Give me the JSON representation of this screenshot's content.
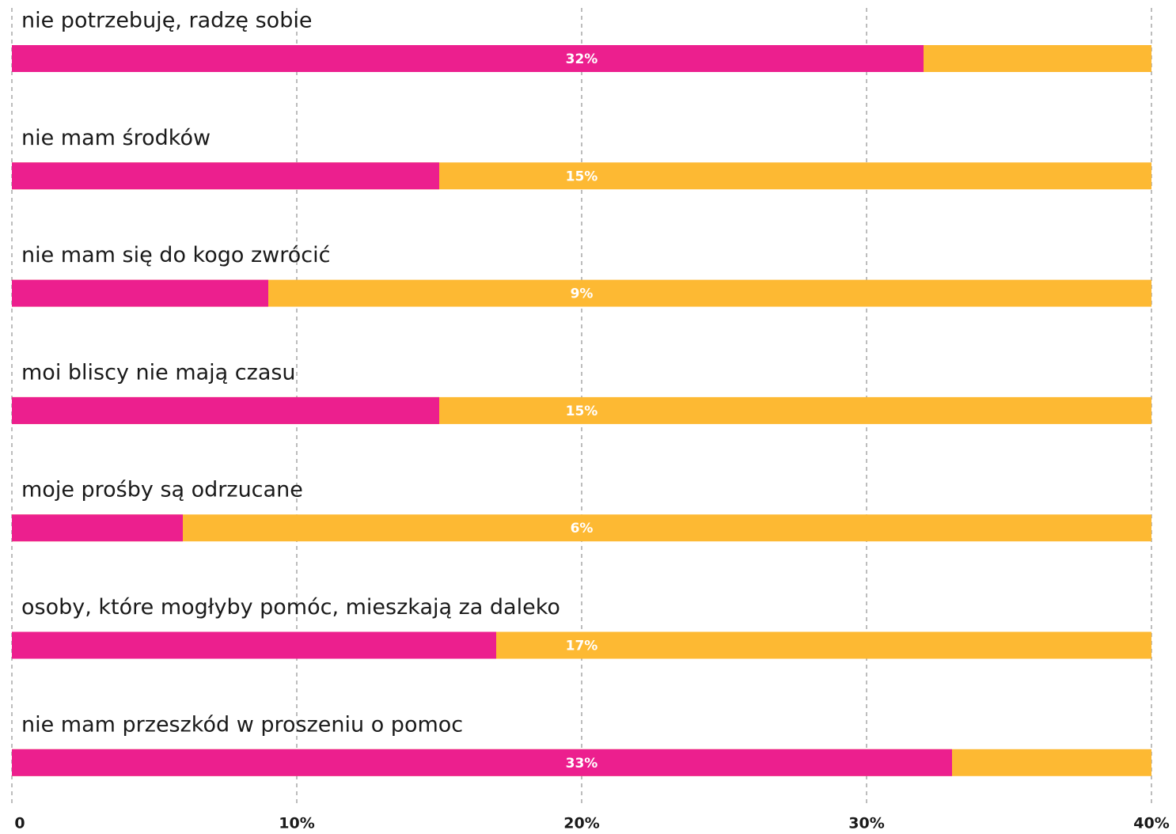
{
  "chart_data": {
    "type": "bar",
    "orientation": "horizontal",
    "categories": [
      "nie potrzebuję, radzę sobie",
      "nie mam środków",
      "nie mam się do kogo zwrócić",
      "moi bliscy nie mają czasu",
      "moje prośby są odrzucane",
      "osoby, które mogłyby pomóc, mieszkają za daleko",
      "nie mam przeszkód w proszeniu o pomoc"
    ],
    "values": [
      32,
      15,
      9,
      15,
      6,
      17,
      33
    ],
    "value_labels": [
      "32%",
      "15%",
      "9%",
      "15%",
      "6%",
      "17%",
      "33%"
    ],
    "color": "#ec1f8e",
    "track_color": "#fdb933",
    "xlim": [
      0,
      40
    ],
    "xticks": [
      0,
      {
        "value": 10,
        "label": "10%"
      },
      {
        "value": 20,
        "label": "20%"
      },
      {
        "value": 30,
        "label": "30%"
      },
      {
        "value": 40,
        "label": "40%"
      }
    ],
    "grid": true
  }
}
